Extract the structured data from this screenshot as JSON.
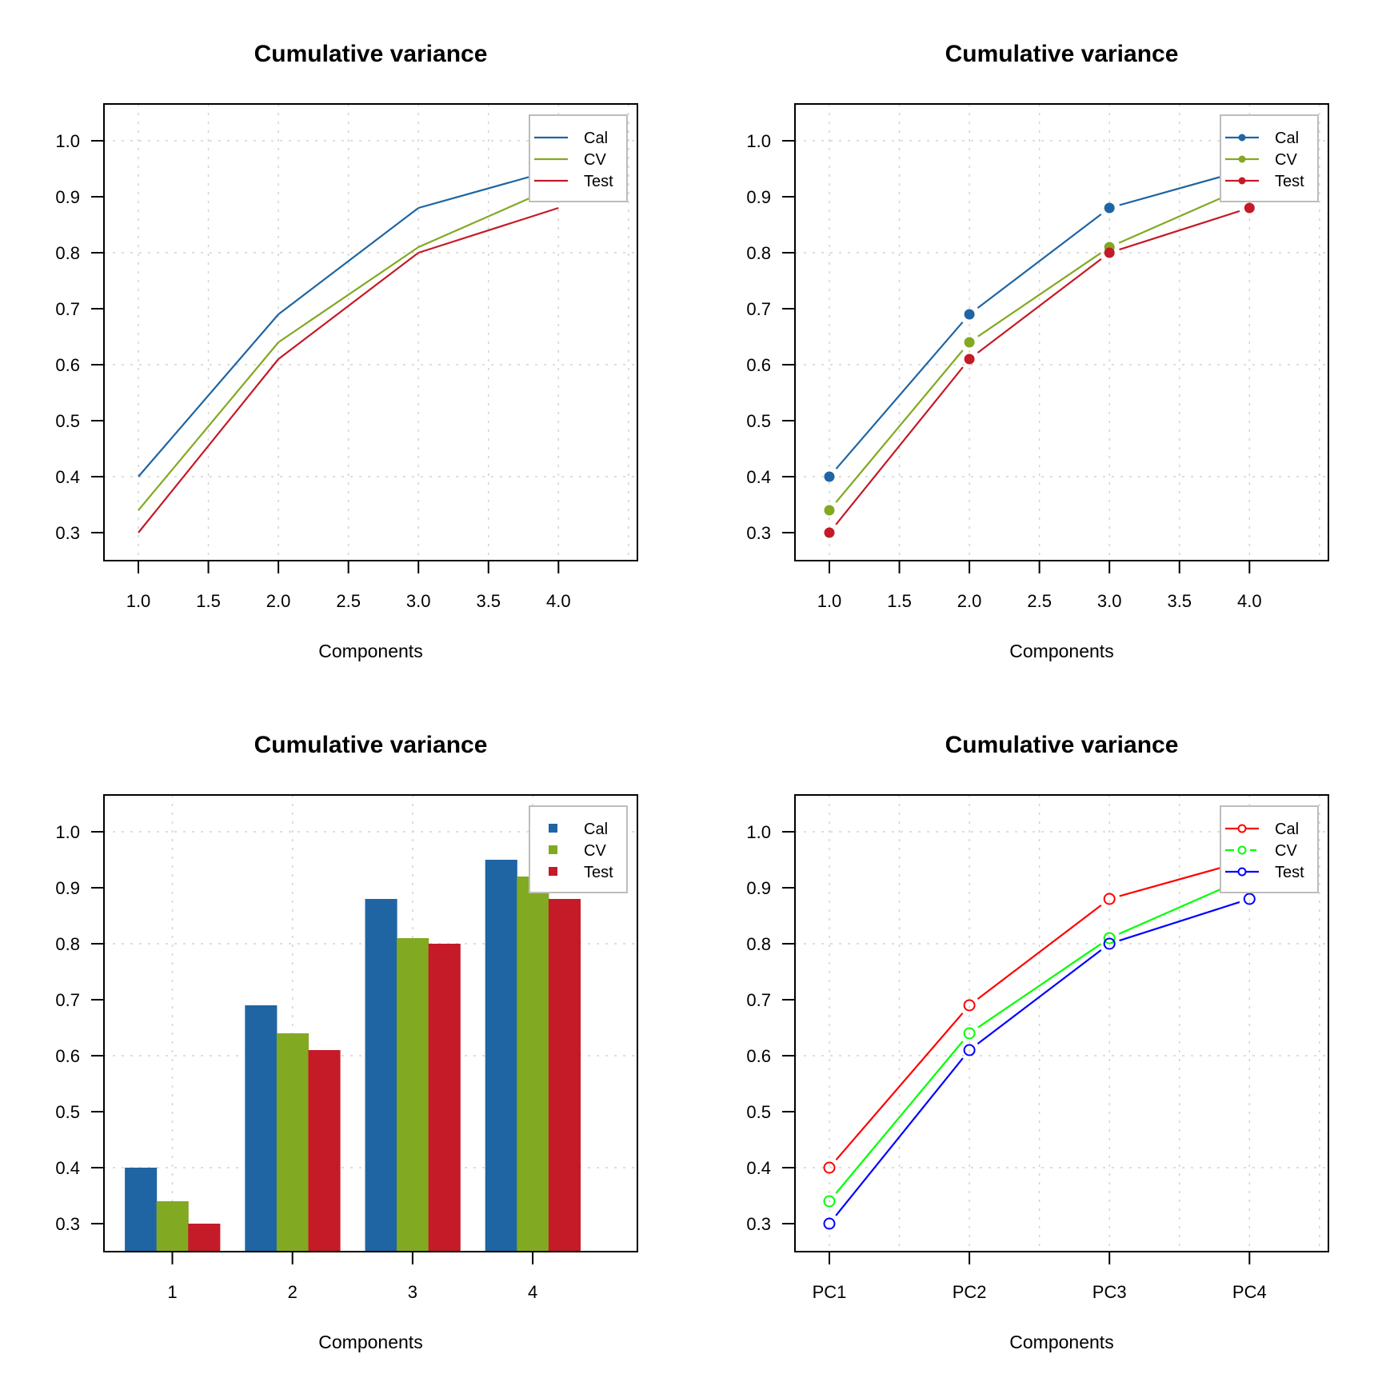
{
  "chart_data": [
    {
      "type": "line",
      "title": "Cumulative variance",
      "xlabel": "Components",
      "ylabel": "",
      "x": [
        1,
        2,
        3,
        4
      ],
      "xlim": [
        0.75,
        4.56
      ],
      "ylim": [
        0.25,
        1.07
      ],
      "xticks": [
        1.0,
        1.5,
        2.0,
        2.5,
        3.0,
        3.5,
        4.0
      ],
      "xtick_labels": [
        "1.0",
        "1.5",
        "2.0",
        "2.5",
        "3.0",
        "3.5",
        "4.0"
      ],
      "xgrid": [
        1.0,
        1.5,
        2.0,
        2.5,
        3.0,
        3.5,
        4.0,
        4.5
      ],
      "yticks": [
        0.3,
        0.4,
        0.5,
        0.6,
        0.7,
        0.8,
        0.9,
        1.0
      ],
      "ytick_labels": [
        "0.3",
        "0.4",
        "0.5",
        "0.6",
        "0.7",
        "0.8",
        "0.9",
        "1.0"
      ],
      "ygrid": [
        0.4,
        0.6,
        0.8,
        1.0
      ],
      "grid": true,
      "markers": "none",
      "legend_position": "top-right",
      "series": [
        {
          "name": "Cal",
          "color": "#1F65A3",
          "values": [
            0.4,
            0.69,
            0.88,
            0.95
          ]
        },
        {
          "name": "CV",
          "color": "#82A922",
          "values": [
            0.34,
            0.64,
            0.81,
            0.92
          ]
        },
        {
          "name": "Test",
          "color": "#C51A28",
          "values": [
            0.3,
            0.61,
            0.8,
            0.88
          ]
        }
      ]
    },
    {
      "type": "line",
      "title": "Cumulative variance",
      "xlabel": "Components",
      "ylabel": "",
      "x": [
        1,
        2,
        3,
        4
      ],
      "xlim": [
        0.75,
        4.56
      ],
      "ylim": [
        0.25,
        1.07
      ],
      "xticks": [
        1.0,
        1.5,
        2.0,
        2.5,
        3.0,
        3.5,
        4.0
      ],
      "xtick_labels": [
        "1.0",
        "1.5",
        "2.0",
        "2.5",
        "3.0",
        "3.5",
        "4.0"
      ],
      "xgrid": [
        1.0,
        1.5,
        2.0,
        2.5,
        3.0,
        3.5,
        4.0,
        4.5
      ],
      "yticks": [
        0.3,
        0.4,
        0.5,
        0.6,
        0.7,
        0.8,
        0.9,
        1.0
      ],
      "ytick_labels": [
        "0.3",
        "0.4",
        "0.5",
        "0.6",
        "0.7",
        "0.8",
        "0.9",
        "1.0"
      ],
      "ygrid": [
        0.4,
        0.6,
        0.8,
        1.0
      ],
      "grid": true,
      "markers": "filled-circle",
      "legend_position": "top-right",
      "series": [
        {
          "name": "Cal",
          "color": "#1F65A3",
          "values": [
            0.4,
            0.69,
            0.88,
            0.95
          ]
        },
        {
          "name": "CV",
          "color": "#82A922",
          "values": [
            0.34,
            0.64,
            0.81,
            0.92
          ]
        },
        {
          "name": "Test",
          "color": "#C51A28",
          "values": [
            0.3,
            0.61,
            0.8,
            0.88
          ]
        }
      ]
    },
    {
      "type": "bar",
      "title": "Cumulative variance",
      "xlabel": "Components",
      "ylabel": "",
      "categories": [
        "1",
        "2",
        "3",
        "4"
      ],
      "ylim": [
        0.25,
        1.07
      ],
      "yticks": [
        0.3,
        0.4,
        0.5,
        0.6,
        0.7,
        0.8,
        0.9,
        1.0
      ],
      "ytick_labels": [
        "0.3",
        "0.4",
        "0.5",
        "0.6",
        "0.7",
        "0.8",
        "0.9",
        "1.0"
      ],
      "ygrid": [
        0.4,
        0.6,
        0.8,
        1.0
      ],
      "grid": true,
      "legend_position": "top-right",
      "series": [
        {
          "name": "Cal",
          "color": "#1F65A3",
          "values": [
            0.4,
            0.69,
            0.88,
            0.95
          ]
        },
        {
          "name": "CV",
          "color": "#82A922",
          "values": [
            0.34,
            0.64,
            0.81,
            0.92
          ]
        },
        {
          "name": "Test",
          "color": "#C51A28",
          "values": [
            0.3,
            0.61,
            0.8,
            0.88
          ]
        }
      ]
    },
    {
      "type": "line",
      "title": "Cumulative variance",
      "xlabel": "Components",
      "ylabel": "",
      "x": [
        1,
        2,
        3,
        4
      ],
      "xlim": [
        0.75,
        4.56
      ],
      "ylim": [
        0.25,
        1.07
      ],
      "xticks": [
        1,
        2,
        3,
        4
      ],
      "xtick_labels": [
        "PC1",
        "PC2",
        "PC3",
        "PC4"
      ],
      "xgrid": [
        1.0,
        1.5,
        2.0,
        2.5,
        3.0,
        3.5,
        4.0,
        4.5
      ],
      "yticks": [
        0.3,
        0.4,
        0.5,
        0.6,
        0.7,
        0.8,
        0.9,
        1.0
      ],
      "ytick_labels": [
        "0.3",
        "0.4",
        "0.5",
        "0.6",
        "0.7",
        "0.8",
        "0.9",
        "1.0"
      ],
      "ygrid": [
        0.4,
        0.6,
        0.8,
        1.0
      ],
      "grid": true,
      "markers": "open-circle",
      "legend_position": "top-right",
      "series": [
        {
          "name": "Cal",
          "color": "#FF0000",
          "values": [
            0.4,
            0.69,
            0.88,
            0.95
          ]
        },
        {
          "name": "CV",
          "color": "#00FF00",
          "values": [
            0.34,
            0.64,
            0.81,
            0.92
          ]
        },
        {
          "name": "Test",
          "color": "#0000FF",
          "values": [
            0.3,
            0.61,
            0.8,
            0.88
          ]
        }
      ]
    }
  ]
}
